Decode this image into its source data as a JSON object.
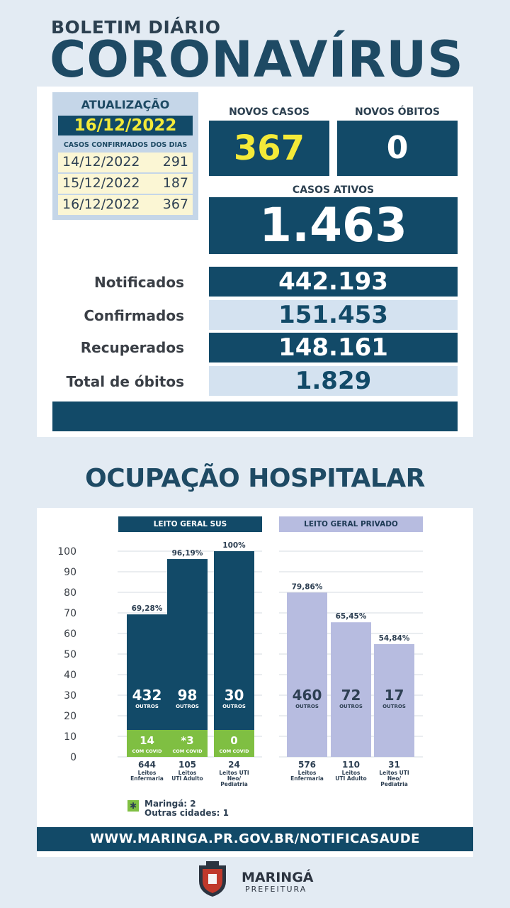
{
  "header": {
    "subtitle": "BOLETIM DIÁRIO",
    "title": "CORONAVÍRUS"
  },
  "update": {
    "label": "ATUALIZAÇÃO",
    "date": "16/12/2022",
    "cases_label": "CASOS CONFIRMADOS DOS DIAS",
    "days": [
      {
        "date": "14/12/2022",
        "value": "291"
      },
      {
        "date": "15/12/2022",
        "value": "187"
      },
      {
        "date": "16/12/2022",
        "value": "367"
      }
    ]
  },
  "new_cases": {
    "label": "NOVOS CASOS",
    "value": "367"
  },
  "new_deaths": {
    "label": "NOVOS ÓBITOS",
    "value": "0"
  },
  "active_cases": {
    "label": "CASOS ATIVOS",
    "value": "1.463"
  },
  "stats": [
    {
      "label": "Notificados",
      "value": "442.193"
    },
    {
      "label": "Confirmados",
      "value": "151.453"
    },
    {
      "label": "Recuperados",
      "value": "148.161"
    },
    {
      "label": "Total de óbitos",
      "value": "1.829"
    }
  ],
  "occupancy_title": "OCUPAÇÃO HOSPITALAR",
  "colors": {
    "dark_blue": "#124a68",
    "lavender": "#b7bce0",
    "green": "#7fbf42",
    "yellow": "#f4ea38"
  },
  "chart_data": {
    "type": "bar",
    "y_ticks": [
      "100",
      "90",
      "80",
      "70",
      "60",
      "50",
      "40",
      "30",
      "20",
      "10",
      "0"
    ],
    "ylim": [
      0,
      100
    ],
    "groups": [
      {
        "name": "LEITO GERAL SUS",
        "bars": [
          {
            "percent_label": "69,28%",
            "value": 69.28,
            "others": "432",
            "others_label": "OUTROS",
            "covid": "14",
            "covid_label": "COM COVID",
            "covid_value": 2.24,
            "total": "644",
            "category": [
              "Leitos",
              "Enfermaria"
            ]
          },
          {
            "percent_label": "96,19%",
            "value": 96.19,
            "others": "98",
            "others_label": "OUTROS",
            "covid": "*3",
            "covid_label": "COM COVID",
            "covid_value": 2.86,
            "total": "105",
            "category": [
              "Leitos",
              "UTI Adulto"
            ]
          },
          {
            "percent_label": "100%",
            "value": 100,
            "others": "30",
            "others_label": "OUTROS",
            "covid": "0",
            "covid_label": "COM COVID",
            "covid_value": 0,
            "total": "24",
            "category": [
              "Leitos UTI",
              "Neo/",
              "Pediatria"
            ]
          }
        ]
      },
      {
        "name": "LEITO GERAL PRIVADO",
        "bars": [
          {
            "percent_label": "79,86%",
            "value": 79.86,
            "others": "460",
            "others_label": "OUTROS",
            "total": "576",
            "category": [
              "Leitos",
              "Enfermaria"
            ]
          },
          {
            "percent_label": "65,45%",
            "value": 65.45,
            "others": "72",
            "others_label": "OUTROS",
            "total": "110",
            "category": [
              "Leitos",
              "UTI Adulto"
            ]
          },
          {
            "percent_label": "54,84%",
            "value": 54.84,
            "others": "17",
            "others_label": "OUTROS",
            "total": "31",
            "category": [
              "Leitos UTI",
              "Neo/",
              "Pediatria"
            ]
          }
        ]
      }
    ]
  },
  "legend": {
    "icon": "asterisk-icon",
    "line1": "Maringá: 2",
    "line2": "Outras cidades: 1"
  },
  "url": "WWW.MARINGA.PR.GOV.BR/NOTIFICASAUDE",
  "footer": {
    "name": "MARINGÁ",
    "sub": "PREFEITURA"
  }
}
